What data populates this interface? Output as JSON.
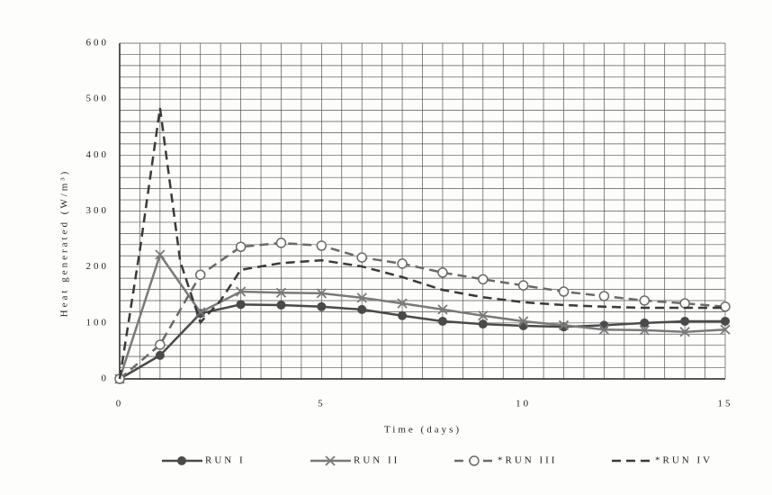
{
  "chart_data": {
    "type": "line",
    "y_label": "Heat generated (W/m³)",
    "x_label": "Time (days)",
    "xlim": [
      0,
      15
    ],
    "xticks": [
      0,
      5,
      10,
      15
    ],
    "ylim": [
      0,
      600
    ],
    "yticks": [
      0,
      100,
      200,
      300,
      400,
      500,
      600
    ],
    "grid": true,
    "x_minor_divisions": 10,
    "y_minor_divisions": 5,
    "legend": "bottom",
    "series": [
      {
        "name": "RUN I",
        "color": "#4a4a4a",
        "dash": false,
        "marker": "filled-circle",
        "x": [
          0,
          1,
          2,
          3,
          4,
          5,
          6,
          7,
          8,
          9,
          10,
          11,
          12,
          13,
          14,
          15
        ],
        "values": [
          0,
          42,
          117,
          133,
          132,
          129,
          124,
          113,
          103,
          98,
          95,
          93,
          96,
          100,
          103,
          103
        ]
      },
      {
        "name": "RUN II",
        "color": "#7a7a7a",
        "dash": false,
        "marker": "cross",
        "x": [
          0,
          1,
          2,
          3,
          4,
          5,
          6,
          7,
          8,
          9,
          10,
          11,
          12,
          13,
          14,
          15
        ],
        "values": [
          0,
          222,
          119,
          156,
          154,
          153,
          145,
          135,
          124,
          113,
          103,
          96,
          88,
          87,
          84,
          88
        ]
      },
      {
        "name": "*RUN III",
        "color": "#6a6a6a",
        "dash": true,
        "marker": "open-circle",
        "x": [
          0,
          1,
          2,
          3,
          4,
          5,
          6,
          7,
          8,
          9,
          10,
          11,
          12,
          13,
          14,
          15
        ],
        "values": [
          0,
          61,
          186,
          236,
          243,
          238,
          217,
          206,
          190,
          178,
          167,
          156,
          148,
          140,
          135,
          129
        ]
      },
      {
        "name": "*RUN IV",
        "color": "#3a3a3a",
        "dash": true,
        "marker": "none",
        "x": [
          0,
          0.5,
          1,
          1.5,
          2,
          2.5,
          3,
          4,
          5,
          6,
          7,
          8,
          9,
          10,
          11,
          12,
          13,
          14,
          15
        ],
        "values": [
          0,
          230,
          484,
          210,
          101,
          140,
          195,
          207,
          212,
          201,
          182,
          159,
          146,
          137,
          132,
          129,
          127,
          127,
          127
        ]
      }
    ]
  }
}
